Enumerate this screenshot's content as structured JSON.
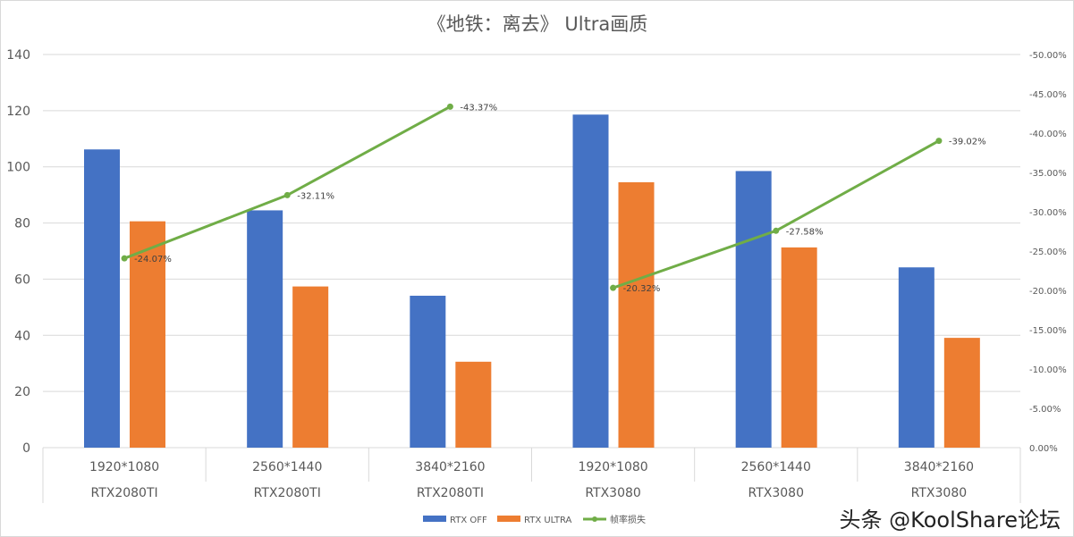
{
  "chart_data": {
    "type": "bar",
    "title": "《地铁：离去》 Ultra画质",
    "categories": [
      {
        "resolution": "1920*1080",
        "gpu": "RTX2080TI"
      },
      {
        "resolution": "2560*1440",
        "gpu": "RTX2080TI"
      },
      {
        "resolution": "3840*2160",
        "gpu": "RTX2080TI"
      },
      {
        "resolution": "1920*1080",
        "gpu": "RTX3080"
      },
      {
        "resolution": "2560*1440",
        "gpu": "RTX3080"
      },
      {
        "resolution": "3840*2160",
        "gpu": "RTX3080"
      }
    ],
    "series": [
      {
        "name": "RTX OFF",
        "type": "bar",
        "color": "#4472c4",
        "values": [
          106.2,
          84.5,
          54.1,
          118.6,
          98.5,
          64.2
        ]
      },
      {
        "name": "RTX ULTRA",
        "type": "bar",
        "color": "#ed7d31",
        "values": [
          80.6,
          57.4,
          30.6,
          94.5,
          71.3,
          39.1
        ]
      },
      {
        "name": "帧率损失",
        "type": "line",
        "axis": "right",
        "color": "#70ad47",
        "values": [
          -24.07,
          -32.11,
          -43.37,
          -20.32,
          -27.58,
          -39.02
        ],
        "labels": [
          "-24.07%",
          "-32.11%",
          "-43.37%",
          "-20.32%",
          "-27.58%",
          "-39.02%"
        ],
        "segments": [
          [
            0,
            1,
            2
          ],
          [
            3,
            4,
            5
          ]
        ]
      }
    ],
    "ylim": [
      0,
      140
    ],
    "yticks": [
      "0",
      "20",
      "40",
      "60",
      "80",
      "100",
      "120",
      "140"
    ],
    "y2lim": [
      0,
      -50
    ],
    "y2ticks": [
      "0.00%",
      "-5.00%",
      "-10.00%",
      "-15.00%",
      "-20.00%",
      "-25.00%",
      "-30.00%",
      "-35.00%",
      "-40.00%",
      "-45.00%",
      "-50.00%"
    ],
    "grid": true,
    "legend": "bottom"
  },
  "watermark": "头条 @KoolShare论坛"
}
